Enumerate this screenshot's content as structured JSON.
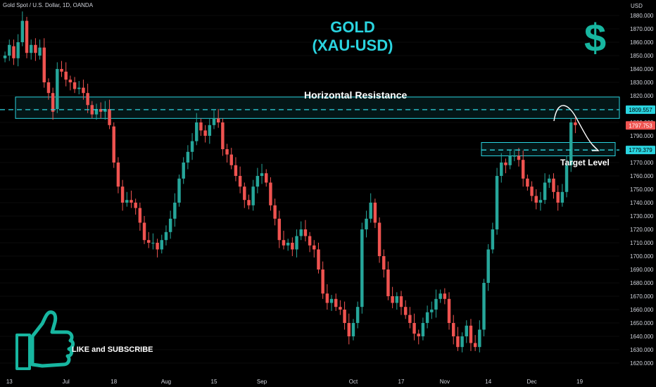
{
  "header": {
    "symbol_line": "Gold Spot / U.S. Dollar, 1D, OANDA"
  },
  "title": {
    "line1": "GOLD",
    "line2": "(XAU-USD)"
  },
  "logo": {
    "glyph": "$",
    "name": "dollar-icon",
    "color": "#17b6a0"
  },
  "annotations": {
    "resistance_label": "Horizontal Resistance",
    "target_label": "Target Level",
    "like_label": "LIKE and SUBSCRIBE",
    "like_icon": "thumbs-up-icon"
  },
  "price_tags": [
    {
      "value": "1809.557",
      "kind": "resistance"
    },
    {
      "value": "1797.753",
      "kind": "last"
    },
    {
      "value": "1779.379",
      "kind": "target"
    }
  ],
  "colors": {
    "up": "#26a69a",
    "down": "#ef5350",
    "accent": "#2ad4e0",
    "background": "#000000",
    "axis_text": "#d1d4dc"
  },
  "chart_data": {
    "type": "candlestick",
    "title": "GOLD (XAU-USD)",
    "y_unit": "USD",
    "ylim": [
      1615,
      1890
    ],
    "y_ticks": [
      1620,
      1630,
      1640,
      1650,
      1660,
      1670,
      1680,
      1690,
      1700,
      1710,
      1720,
      1730,
      1740,
      1750,
      1760,
      1770,
      1780,
      1790,
      1800,
      1810,
      1820,
      1830,
      1840,
      1850,
      1860,
      1870,
      1880
    ],
    "x_ticks": [
      {
        "label": "13",
        "i": 1
      },
      {
        "label": "Jul",
        "i": 14
      },
      {
        "label": "18",
        "i": 25
      },
      {
        "label": "Aug",
        "i": 37
      },
      {
        "label": "15",
        "i": 48
      },
      {
        "label": "Sep",
        "i": 59
      },
      {
        "label": "Oct",
        "i": 80
      },
      {
        "label": "17",
        "i": 91
      },
      {
        "label": "Nov",
        "i": 101
      },
      {
        "label": "14",
        "i": 111
      },
      {
        "label": "Dec",
        "i": 121
      },
      {
        "label": "19",
        "i": 132
      }
    ],
    "resistance_zone": [
      1803,
      1819
    ],
    "resistance_level": 1809.557,
    "target_zone": [
      1775,
      1785
    ],
    "target_level": 1779.379,
    "last_price": 1797.753,
    "closes": [
      1850,
      1858,
      1848,
      1860,
      1876,
      1852,
      1858,
      1852,
      1856,
      1830,
      1822,
      1808,
      1840,
      1838,
      1832,
      1830,
      1825,
      1826,
      1822,
      1813,
      1806,
      1810,
      1808,
      1810,
      1798,
      1770,
      1752,
      1740,
      1742,
      1740,
      1736,
      1725,
      1712,
      1710,
      1710,
      1705,
      1712,
      1718,
      1728,
      1740,
      1758,
      1770,
      1778,
      1786,
      1800,
      1794,
      1790,
      1798,
      1803,
      1800,
      1780,
      1776,
      1768,
      1760,
      1752,
      1742,
      1738,
      1752,
      1760,
      1762,
      1755,
      1738,
      1728,
      1712,
      1708,
      1710,
      1705,
      1715,
      1720,
      1715,
      1708,
      1705,
      1690,
      1672,
      1665,
      1668,
      1662,
      1660,
      1650,
      1640,
      1650,
      1662,
      1720,
      1728,
      1740,
      1725,
      1700,
      1690,
      1670,
      1665,
      1670,
      1662,
      1656,
      1650,
      1642,
      1640,
      1650,
      1658,
      1660,
      1668,
      1672,
      1668,
      1650,
      1640,
      1632,
      1640,
      1648,
      1635,
      1632,
      1645,
      1680,
      1705,
      1720,
      1760,
      1770,
      1768,
      1775,
      1775,
      1772,
      1758,
      1752,
      1745,
      1740,
      1742,
      1755,
      1758,
      1748,
      1740,
      1748,
      1768,
      1800,
      1798
    ],
    "opens": [
      1848,
      1850,
      1857,
      1848,
      1860,
      1876,
      1852,
      1858,
      1850,
      1856,
      1830,
      1822,
      1810,
      1840,
      1838,
      1832,
      1830,
      1825,
      1826,
      1822,
      1813,
      1806,
      1810,
      1808,
      1810,
      1797,
      1770,
      1752,
      1740,
      1742,
      1740,
      1736,
      1725,
      1712,
      1710,
      1710,
      1705,
      1712,
      1718,
      1728,
      1740,
      1758,
      1770,
      1778,
      1786,
      1800,
      1794,
      1790,
      1798,
      1803,
      1800,
      1780,
      1776,
      1768,
      1760,
      1752,
      1742,
      1738,
      1752,
      1760,
      1762,
      1755,
      1738,
      1728,
      1712,
      1708,
      1710,
      1705,
      1715,
      1720,
      1715,
      1708,
      1705,
      1690,
      1672,
      1665,
      1668,
      1662,
      1660,
      1650,
      1640,
      1650,
      1662,
      1720,
      1728,
      1740,
      1725,
      1700,
      1690,
      1670,
      1665,
      1670,
      1662,
      1656,
      1650,
      1642,
      1640,
      1650,
      1658,
      1660,
      1668,
      1672,
      1668,
      1650,
      1640,
      1632,
      1640,
      1648,
      1635,
      1632,
      1645,
      1680,
      1705,
      1720,
      1760,
      1770,
      1768,
      1775,
      1775,
      1772,
      1758,
      1752,
      1745,
      1740,
      1742,
      1755,
      1758,
      1748,
      1740,
      1748,
      1768,
      1800
    ]
  }
}
